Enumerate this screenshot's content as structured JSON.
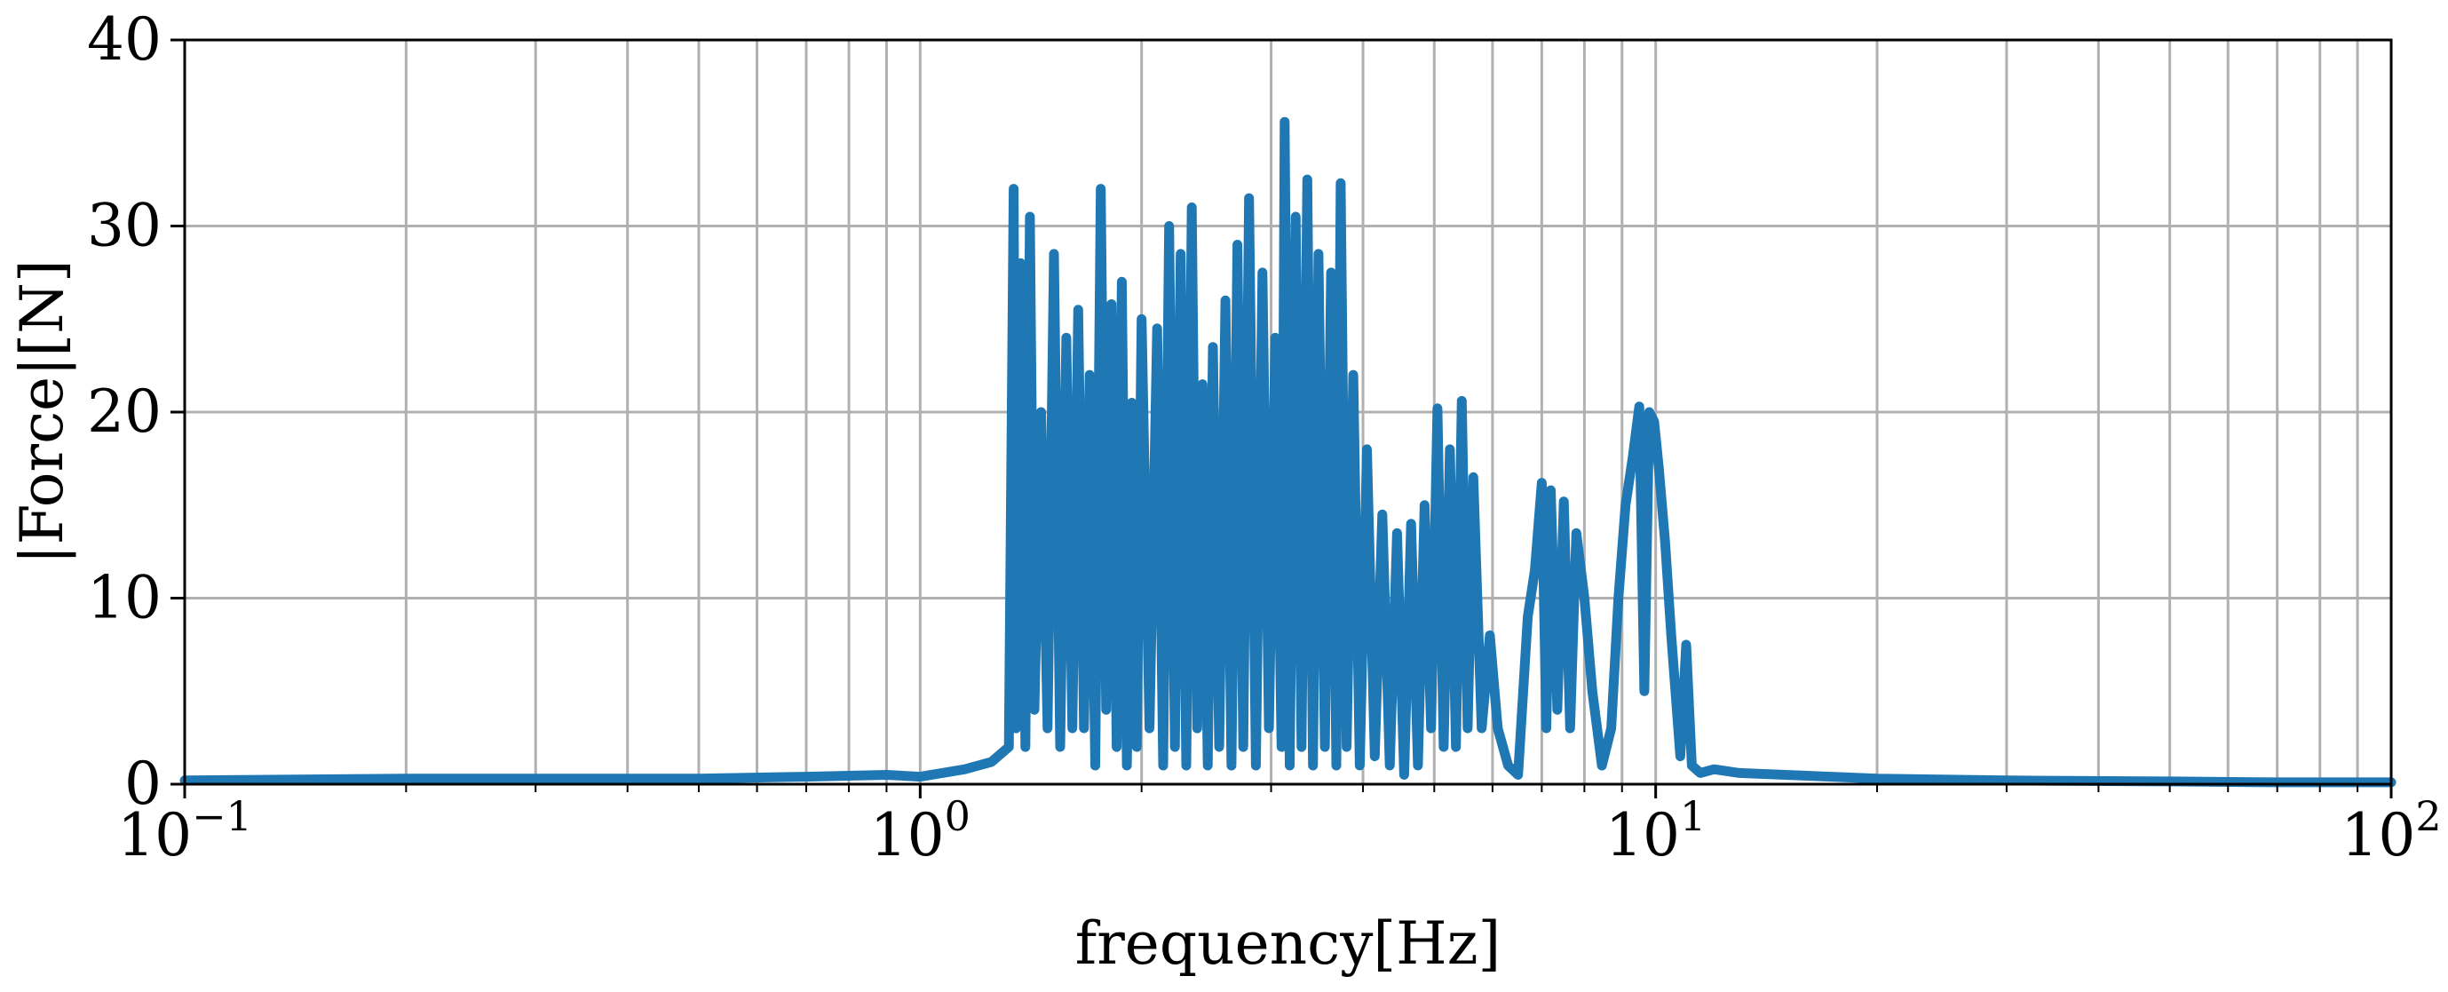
{
  "chart_data": {
    "type": "line",
    "title": "",
    "xlabel": "frequency[Hz]",
    "ylabel": "|Force|[N]",
    "xscale": "log",
    "xlim": [
      0.1,
      100
    ],
    "ylim": [
      0,
      40
    ],
    "grid": true,
    "legend": "none",
    "x_ticks": [
      {
        "value": 0.1,
        "base": "10",
        "exp": "−1"
      },
      {
        "value": 1,
        "base": "10",
        "exp": "0"
      },
      {
        "value": 10,
        "base": "10",
        "exp": "1"
      },
      {
        "value": 100,
        "base": "10",
        "exp": "2"
      }
    ],
    "y_ticks": [
      {
        "value": 0,
        "label": "0"
      },
      {
        "value": 10,
        "label": "10"
      },
      {
        "value": 20,
        "label": "20"
      },
      {
        "value": 30,
        "label": "30"
      },
      {
        "value": 40,
        "label": "40"
      }
    ],
    "series": [
      {
        "color": "#1f77b4",
        "points": [
          [
            0.1,
            0.2
          ],
          [
            0.2,
            0.3
          ],
          [
            0.3,
            0.3
          ],
          [
            0.5,
            0.3
          ],
          [
            0.7,
            0.4
          ],
          [
            0.9,
            0.5
          ],
          [
            1.0,
            0.4
          ],
          [
            1.15,
            0.8
          ],
          [
            1.25,
            1.2
          ],
          [
            1.32,
            2.0
          ],
          [
            1.34,
            32.0
          ],
          [
            1.35,
            3.0
          ],
          [
            1.37,
            28.0
          ],
          [
            1.39,
            2.0
          ],
          [
            1.41,
            30.5
          ],
          [
            1.43,
            4.0
          ],
          [
            1.46,
            20.0
          ],
          [
            1.49,
            3.0
          ],
          [
            1.52,
            28.5
          ],
          [
            1.55,
            2.0
          ],
          [
            1.58,
            24.0
          ],
          [
            1.61,
            3.0
          ],
          [
            1.64,
            25.5
          ],
          [
            1.67,
            3.0
          ],
          [
            1.7,
            22.0
          ],
          [
            1.73,
            1.0
          ],
          [
            1.76,
            32.0
          ],
          [
            1.79,
            4.0
          ],
          [
            1.82,
            25.8
          ],
          [
            1.85,
            2.0
          ],
          [
            1.88,
            27.0
          ],
          [
            1.91,
            1.0
          ],
          [
            1.94,
            20.5
          ],
          [
            1.97,
            2.0
          ],
          [
            2.0,
            25.0
          ],
          [
            2.05,
            3.0
          ],
          [
            2.1,
            24.5
          ],
          [
            2.14,
            1.0
          ],
          [
            2.18,
            30.0
          ],
          [
            2.22,
            2.0
          ],
          [
            2.26,
            28.5
          ],
          [
            2.3,
            1.0
          ],
          [
            2.34,
            31.0
          ],
          [
            2.38,
            3.0
          ],
          [
            2.42,
            21.5
          ],
          [
            2.46,
            1.0
          ],
          [
            2.5,
            23.5
          ],
          [
            2.55,
            2.0
          ],
          [
            2.6,
            26.0
          ],
          [
            2.65,
            1.0
          ],
          [
            2.7,
            29.0
          ],
          [
            2.75,
            2.0
          ],
          [
            2.8,
            31.5
          ],
          [
            2.86,
            1.0
          ],
          [
            2.92,
            27.5
          ],
          [
            2.98,
            3.0
          ],
          [
            3.04,
            24.0
          ],
          [
            3.1,
            2.0
          ],
          [
            3.13,
            35.6
          ],
          [
            3.18,
            1.0
          ],
          [
            3.24,
            30.5
          ],
          [
            3.3,
            2.0
          ],
          [
            3.36,
            32.5
          ],
          [
            3.42,
            1.0
          ],
          [
            3.48,
            28.5
          ],
          [
            3.55,
            2.0
          ],
          [
            3.62,
            27.5
          ],
          [
            3.68,
            1.0
          ],
          [
            3.73,
            32.3
          ],
          [
            3.8,
            2.0
          ],
          [
            3.88,
            22.0
          ],
          [
            3.96,
            1.0
          ],
          [
            4.05,
            18.0
          ],
          [
            4.15,
            1.5
          ],
          [
            4.25,
            14.5
          ],
          [
            4.35,
            1.0
          ],
          [
            4.45,
            13.5
          ],
          [
            4.55,
            0.5
          ],
          [
            4.65,
            14.0
          ],
          [
            4.75,
            1.0
          ],
          [
            4.85,
            15.0
          ],
          [
            4.95,
            3.0
          ],
          [
            5.05,
            20.2
          ],
          [
            5.15,
            2.0
          ],
          [
            5.25,
            18.0
          ],
          [
            5.35,
            2.0
          ],
          [
            5.45,
            20.6
          ],
          [
            5.55,
            3.0
          ],
          [
            5.65,
            16.5
          ],
          [
            5.8,
            3.0
          ],
          [
            5.95,
            8.0
          ],
          [
            6.1,
            3.0
          ],
          [
            6.3,
            1.0
          ],
          [
            6.5,
            0.5
          ],
          [
            6.7,
            9.0
          ],
          [
            6.85,
            11.5
          ],
          [
            7.0,
            16.2
          ],
          [
            7.1,
            3.0
          ],
          [
            7.2,
            15.8
          ],
          [
            7.35,
            4.0
          ],
          [
            7.5,
            15.2
          ],
          [
            7.65,
            3.0
          ],
          [
            7.8,
            13.5
          ],
          [
            8.0,
            10.0
          ],
          [
            8.2,
            5.0
          ],
          [
            8.45,
            1.0
          ],
          [
            8.7,
            3.0
          ],
          [
            8.9,
            10.0
          ],
          [
            9.1,
            15.0
          ],
          [
            9.3,
            17.5
          ],
          [
            9.5,
            20.3
          ],
          [
            9.65,
            5.0
          ],
          [
            9.8,
            20.0
          ],
          [
            9.95,
            19.5
          ],
          [
            10.1,
            17.0
          ],
          [
            10.3,
            13.0
          ],
          [
            10.5,
            8.0
          ],
          [
            10.8,
            1.5
          ],
          [
            11.0,
            7.5
          ],
          [
            11.2,
            1.0
          ],
          [
            11.5,
            0.6
          ],
          [
            12.0,
            0.8
          ],
          [
            13.0,
            0.6
          ],
          [
            15.0,
            0.5
          ],
          [
            20.0,
            0.3
          ],
          [
            30.0,
            0.2
          ],
          [
            50.0,
            0.15
          ],
          [
            70.0,
            0.1
          ],
          [
            100.0,
            0.1
          ]
        ]
      }
    ]
  }
}
